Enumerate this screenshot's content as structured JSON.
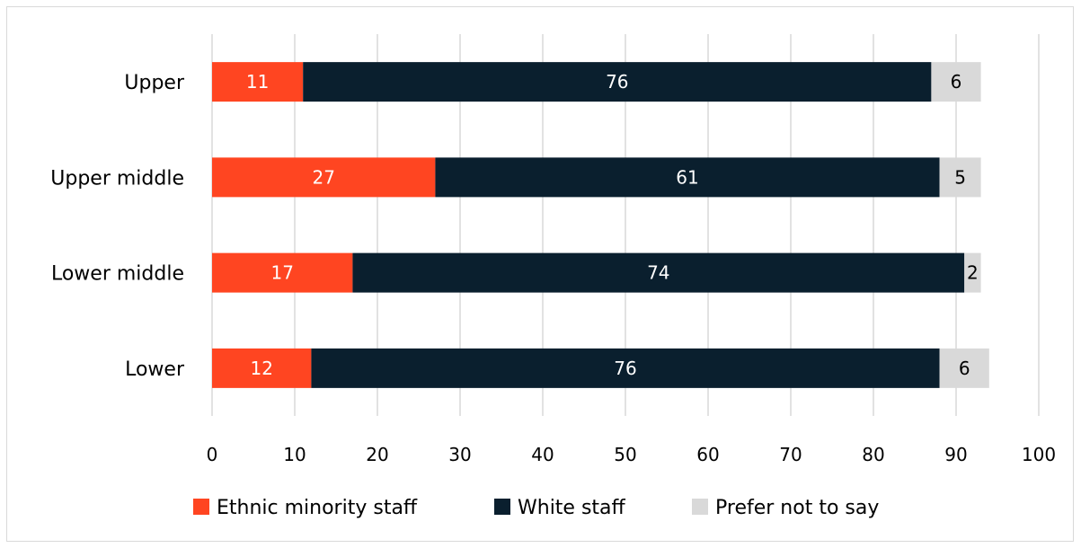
{
  "chart_data": {
    "type": "bar",
    "orientation": "horizontal",
    "stacked": true,
    "categories": [
      "Upper",
      "Upper middle",
      "Lower middle",
      "Lower"
    ],
    "series": [
      {
        "name": "Ethnic minority staff",
        "color": "#ff4521",
        "label_color": "#ffffff",
        "values": [
          11,
          27,
          17,
          12
        ]
      },
      {
        "name": "White staff",
        "color": "#0a1f2e",
        "label_color": "#ffffff",
        "values": [
          76,
          61,
          74,
          76
        ]
      },
      {
        "name": "Prefer not to say",
        "color": "#d9d9d9",
        "label_color": "#000000",
        "values": [
          6,
          5,
          2,
          6
        ]
      }
    ],
    "xlim": [
      0,
      100
    ],
    "xticks": [
      0,
      10,
      20,
      30,
      40,
      50,
      60,
      70,
      80,
      90,
      100
    ],
    "grid": "vertical",
    "legend_position": "bottom"
  }
}
